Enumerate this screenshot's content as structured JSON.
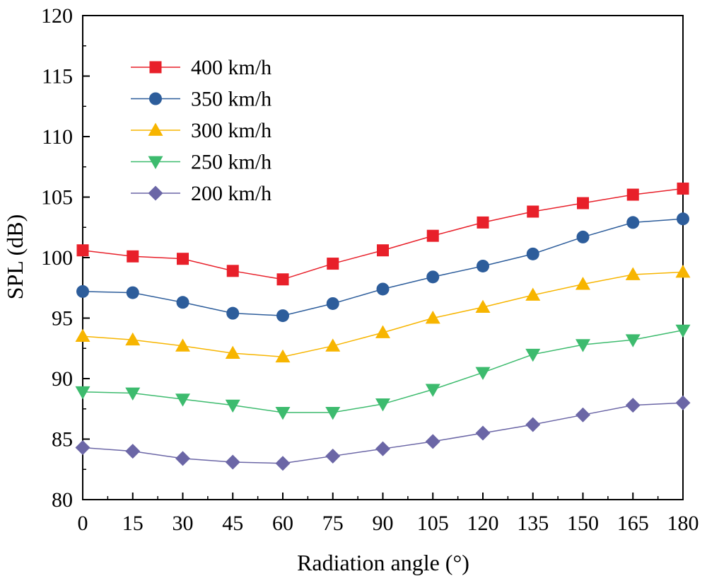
{
  "chart_data": {
    "type": "line",
    "title": "",
    "xlabel": "Radiation angle (°)",
    "ylabel": "SPL (dB)",
    "x": [
      0,
      15,
      30,
      45,
      60,
      75,
      90,
      105,
      120,
      135,
      150,
      165,
      180
    ],
    "xlim": [
      0,
      180
    ],
    "ylim": [
      80,
      120
    ],
    "xticks": [
      0,
      15,
      30,
      45,
      60,
      75,
      90,
      105,
      120,
      135,
      150,
      165,
      180
    ],
    "yticks": [
      80,
      85,
      90,
      95,
      100,
      105,
      110,
      115,
      120
    ],
    "grid": false,
    "legend_position": "top-left",
    "series": [
      {
        "name": "400 km/h",
        "color": "#e8202a",
        "marker": "square",
        "values": [
          100.6,
          100.1,
          99.9,
          98.9,
          98.2,
          99.5,
          100.6,
          101.8,
          102.9,
          103.8,
          104.5,
          105.2,
          105.7
        ]
      },
      {
        "name": "350 km/h",
        "color": "#2d5d9b",
        "marker": "circle",
        "values": [
          97.2,
          97.1,
          96.3,
          95.4,
          95.2,
          96.2,
          97.4,
          98.4,
          99.3,
          100.3,
          101.7,
          102.9,
          103.2
        ]
      },
      {
        "name": "300 km/h",
        "color": "#f7b500",
        "marker": "triangle-up",
        "values": [
          93.5,
          93.2,
          92.7,
          92.1,
          91.8,
          92.7,
          93.8,
          95.0,
          95.9,
          96.9,
          97.8,
          98.6,
          98.8
        ]
      },
      {
        "name": "250 km/h",
        "color": "#3dbb6e",
        "marker": "triangle-down",
        "values": [
          88.9,
          88.8,
          88.3,
          87.8,
          87.2,
          87.2,
          87.9,
          89.1,
          90.5,
          92.0,
          92.8,
          93.2,
          94.0
        ]
      },
      {
        "name": "200 km/h",
        "color": "#6b66a6",
        "marker": "diamond",
        "values": [
          84.3,
          84.0,
          83.4,
          83.1,
          83.0,
          83.6,
          84.2,
          84.8,
          85.5,
          86.2,
          87.0,
          87.8,
          88.0
        ]
      }
    ]
  }
}
